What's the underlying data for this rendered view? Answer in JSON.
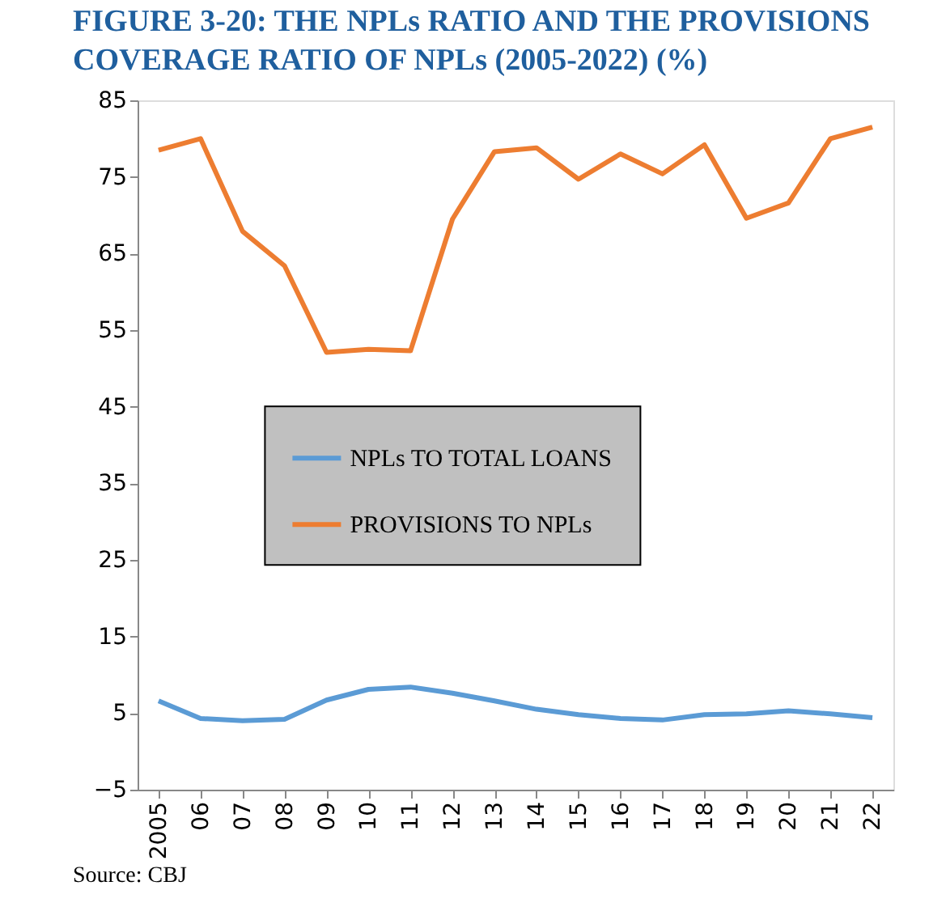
{
  "chart_data": {
    "type": "line",
    "title": "FIGURE 3-20: THE NPLs RATIO AND THE PROVISIONS COVERAGE RATIO OF NPLs (2005-2022) (%)",
    "categories": [
      "2005",
      "06",
      "07",
      "08",
      "09",
      "10",
      "11",
      "12",
      "13",
      "14",
      "15",
      "16",
      "17",
      "18",
      "19",
      "20",
      "21",
      "22"
    ],
    "series": [
      {
        "name": "NPLs TO TOTAL LOANS",
        "color": "#5b9bd5",
        "values": [
          6.6,
          4.3,
          4.0,
          4.2,
          6.7,
          8.1,
          8.4,
          7.6,
          6.6,
          5.5,
          4.8,
          4.3,
          4.1,
          4.8,
          4.9,
          5.3,
          4.9,
          4.4
        ]
      },
      {
        "name": "PROVISIONS TO NPLs",
        "color": "#ed7d31",
        "values": [
          78.5,
          80.0,
          67.9,
          63.4,
          52.1,
          52.5,
          52.3,
          69.5,
          78.3,
          78.8,
          74.7,
          78.0,
          75.4,
          79.2,
          69.6,
          71.6,
          80.0,
          81.5
        ]
      }
    ],
    "ylim": [
      -5,
      85
    ],
    "yticks": [
      -5,
      5,
      15,
      25,
      35,
      45,
      55,
      65,
      75,
      85
    ],
    "grid": false,
    "legend": "center",
    "annotations": [
      "Source: CBJ"
    ]
  }
}
